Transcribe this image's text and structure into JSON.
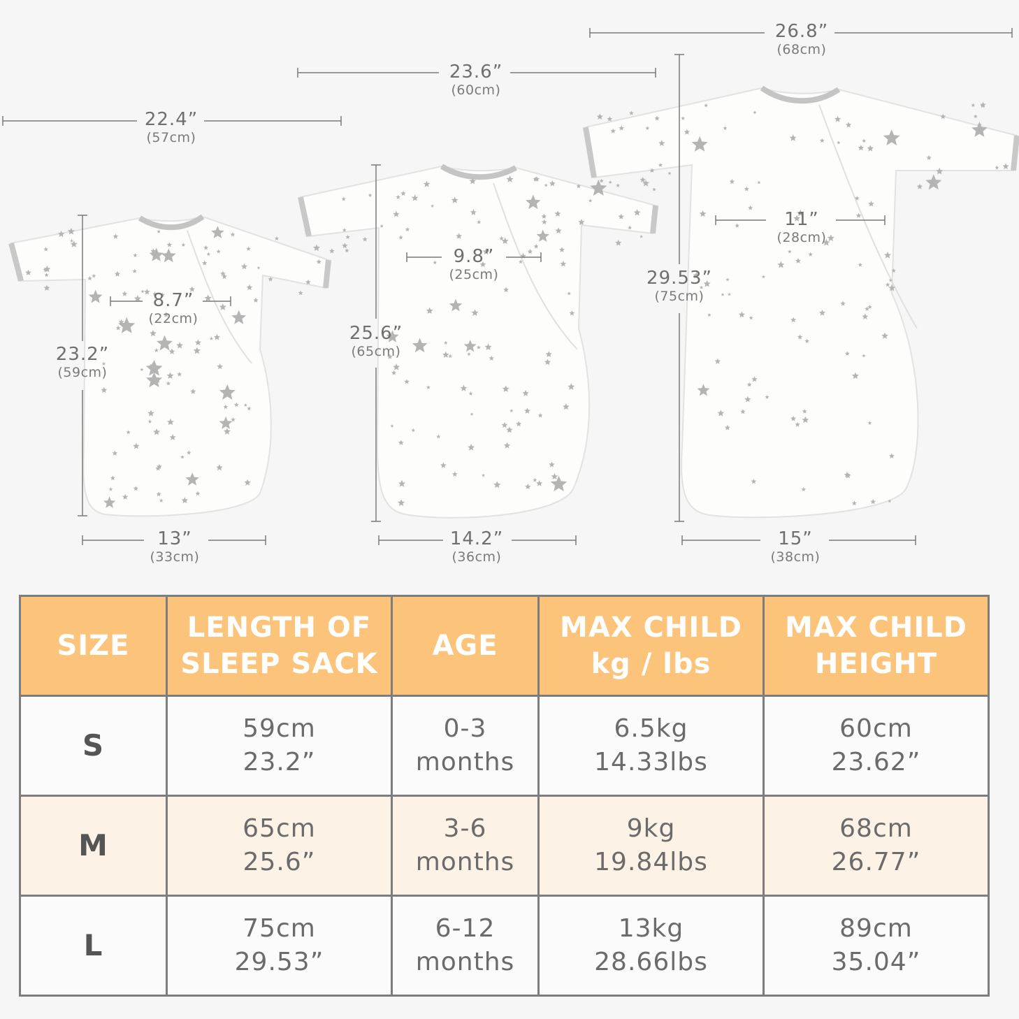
{
  "garments": [
    {
      "id": "S",
      "width_label": "22.4”",
      "width_cm": "(57cm)",
      "chest_label": "8.7”",
      "chest_cm": "(22cm)",
      "length_label": "23.2”",
      "length_cm": "(59cm)",
      "hem_label": "13”",
      "hem_cm": "(33cm)"
    },
    {
      "id": "M",
      "width_label": "23.6”",
      "width_cm": "(60cm)",
      "chest_label": "9.8”",
      "chest_cm": "(25cm)",
      "length_label": "25.6”",
      "length_cm": "(65cm)",
      "hem_label": "14.2”",
      "hem_cm": "(36cm)"
    },
    {
      "id": "L",
      "width_label": "26.8”",
      "width_cm": "(68cm)",
      "chest_label": "11”",
      "chest_cm": "(28cm)",
      "length_label": "29.53”",
      "length_cm": "(75cm)",
      "hem_label": "15”",
      "hem_cm": "(38cm)"
    }
  ],
  "table": {
    "headers": [
      [
        "SIZE"
      ],
      [
        "LENGTH OF",
        "SLEEP SACK"
      ],
      [
        "AGE"
      ],
      [
        "MAX CHILD",
        "kg / lbs"
      ],
      [
        "MAX CHILD",
        "HEIGHT"
      ]
    ],
    "rows": [
      {
        "size": "S",
        "length": [
          "59cm",
          "23.2”"
        ],
        "age": [
          "0-3",
          "months"
        ],
        "weight": [
          "6.5kg",
          "14.33lbs"
        ],
        "height": [
          "60cm",
          "23.62”"
        ]
      },
      {
        "size": "M",
        "length": [
          "65cm",
          "25.6”"
        ],
        "age": [
          "3-6",
          "months"
        ],
        "weight": [
          "9kg",
          "19.84lbs"
        ],
        "height": [
          "68cm",
          "26.77”"
        ]
      },
      {
        "size": "L",
        "length": [
          "75cm",
          "29.53”"
        ],
        "age": [
          "6-12",
          "months"
        ],
        "weight": [
          "13kg",
          "28.66lbs"
        ],
        "height": [
          "89cm",
          "35.04”"
        ]
      }
    ]
  },
  "colors": {
    "header_bg": "#fbc47a",
    "row_alt_bg": "#fdf2e6",
    "grid": "#7d7d7d",
    "trim": "#c4c4c4",
    "star": "#b4b4b4",
    "fabric": "#fdfdfb"
  }
}
